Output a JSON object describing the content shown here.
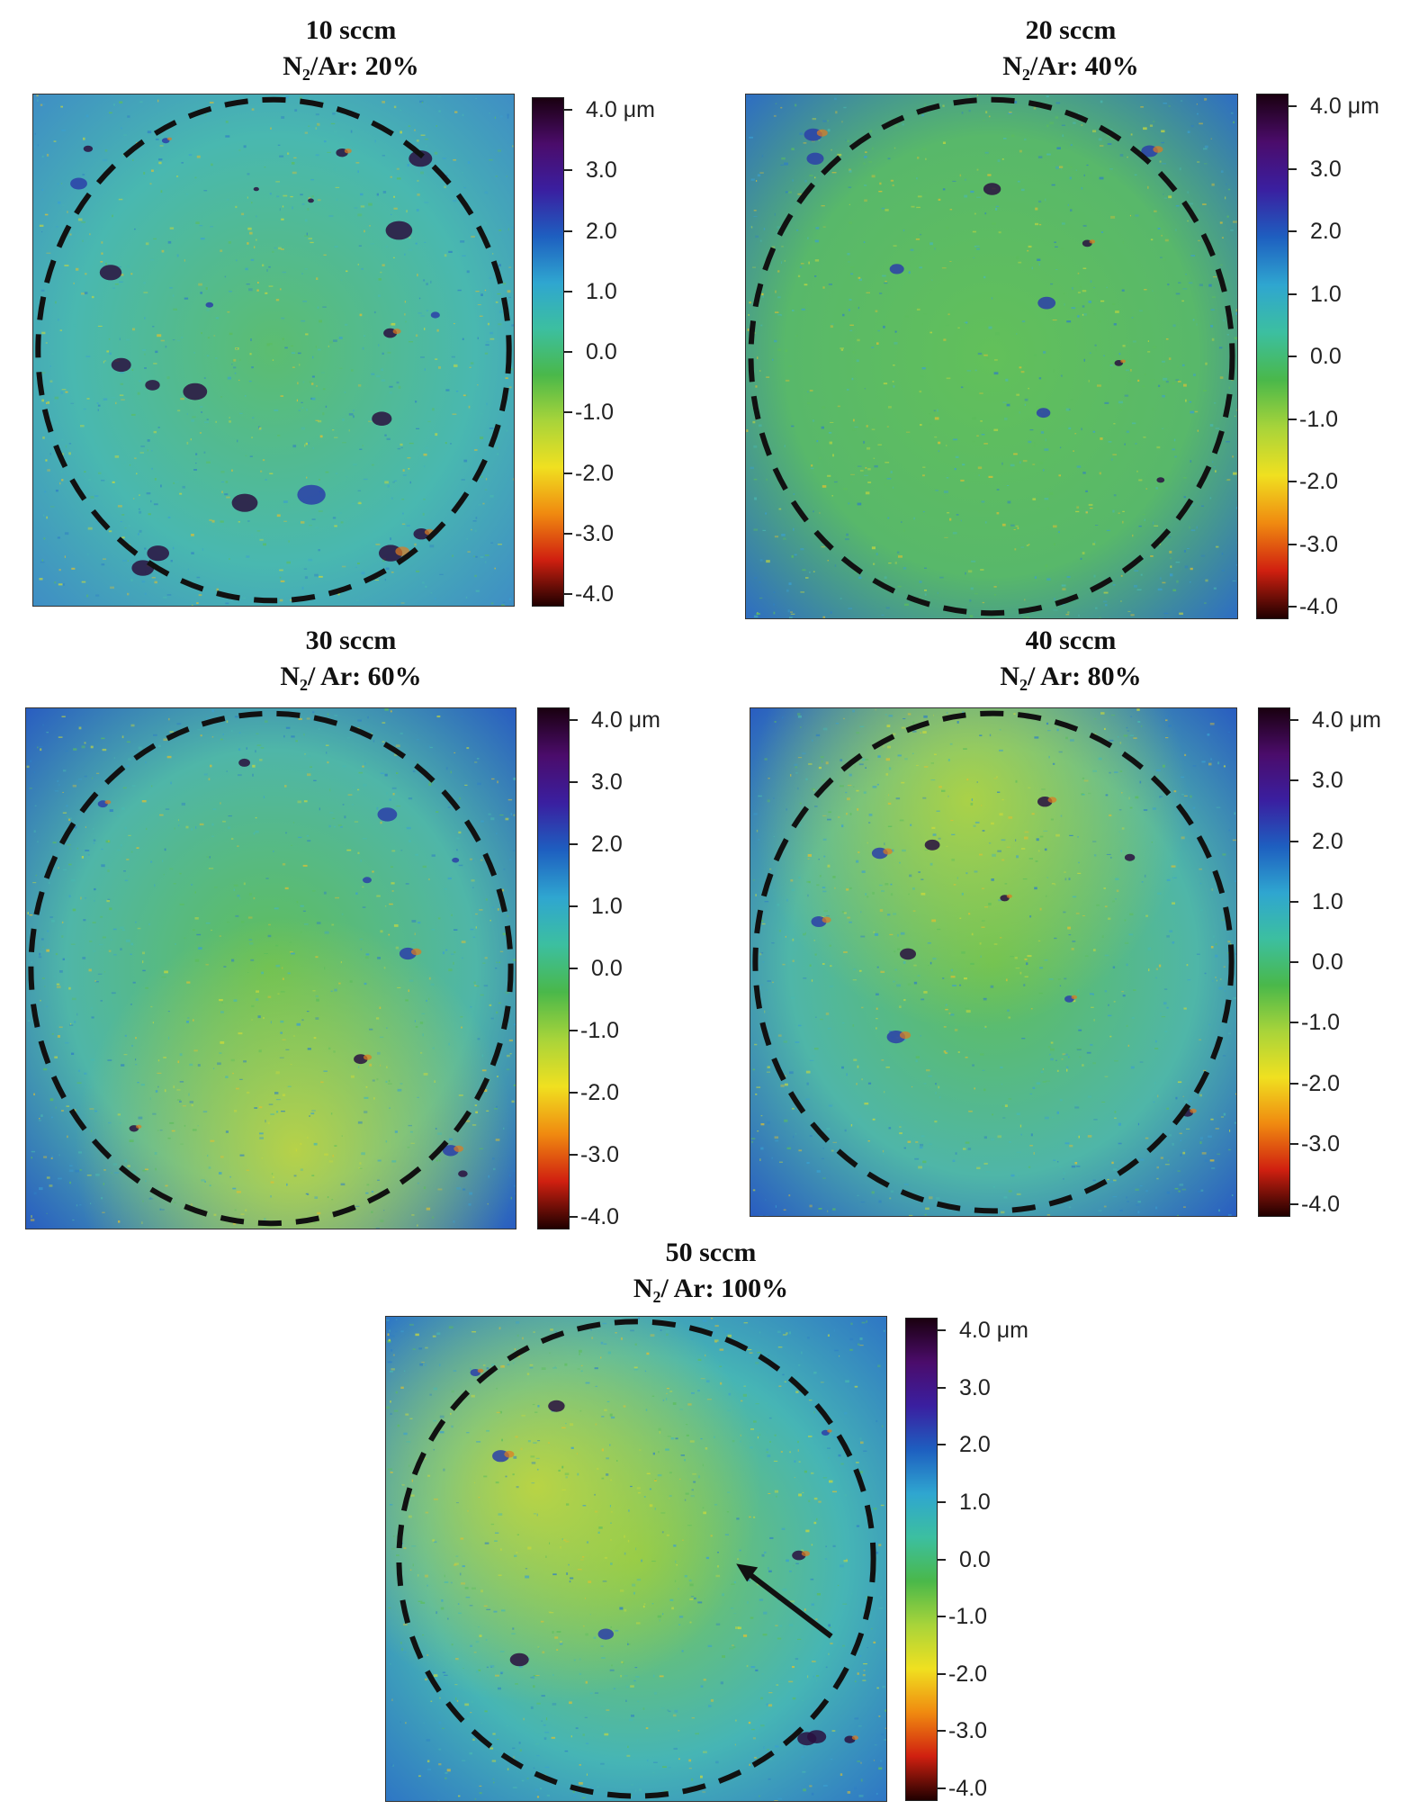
{
  "colors": {
    "base_teal": "#46b8ad",
    "base_green": "#5cbd5c",
    "base_yellow": "#c9d93b",
    "base_blue": "#2f7fc4",
    "dark_purple": "#2a1040",
    "colorbar_stops": [
      "#1a0010",
      "#4b0c6b",
      "#3a1fa0",
      "#1e5fc0",
      "#2fa6d0",
      "#3cbfa0",
      "#4ab84a",
      "#a8d43a",
      "#f0e020",
      "#f08a10",
      "#d02010",
      "#200000"
    ],
    "dash_circle": "#111111"
  },
  "colorbar": {
    "ticks": [
      "4.0 μm",
      "3.0",
      "2.0",
      "1.0",
      "0.0",
      "-1.0",
      "-2.0",
      "-3.0",
      "-4.0"
    ]
  },
  "panels": [
    {
      "line1": "10 sccm",
      "line2": "N₂/Ar: 20%",
      "theme": "teal-rough",
      "arrow": false
    },
    {
      "line1": "20 sccm",
      "line2": "N₂/Ar: 40%",
      "theme": "green-smooth",
      "arrow": false
    },
    {
      "line1": "30 sccm",
      "line2": "N₂/ Ar: 60%",
      "theme": "green-yellow-bottom",
      "arrow": false
    },
    {
      "line1": "40 sccm",
      "line2": "N₂/ Ar: 80%",
      "theme": "green-yellow-top",
      "arrow": false
    },
    {
      "line1": "50 sccm",
      "line2": "N₂/ Ar: 100%",
      "theme": "yellow-left",
      "arrow": true
    }
  ]
}
